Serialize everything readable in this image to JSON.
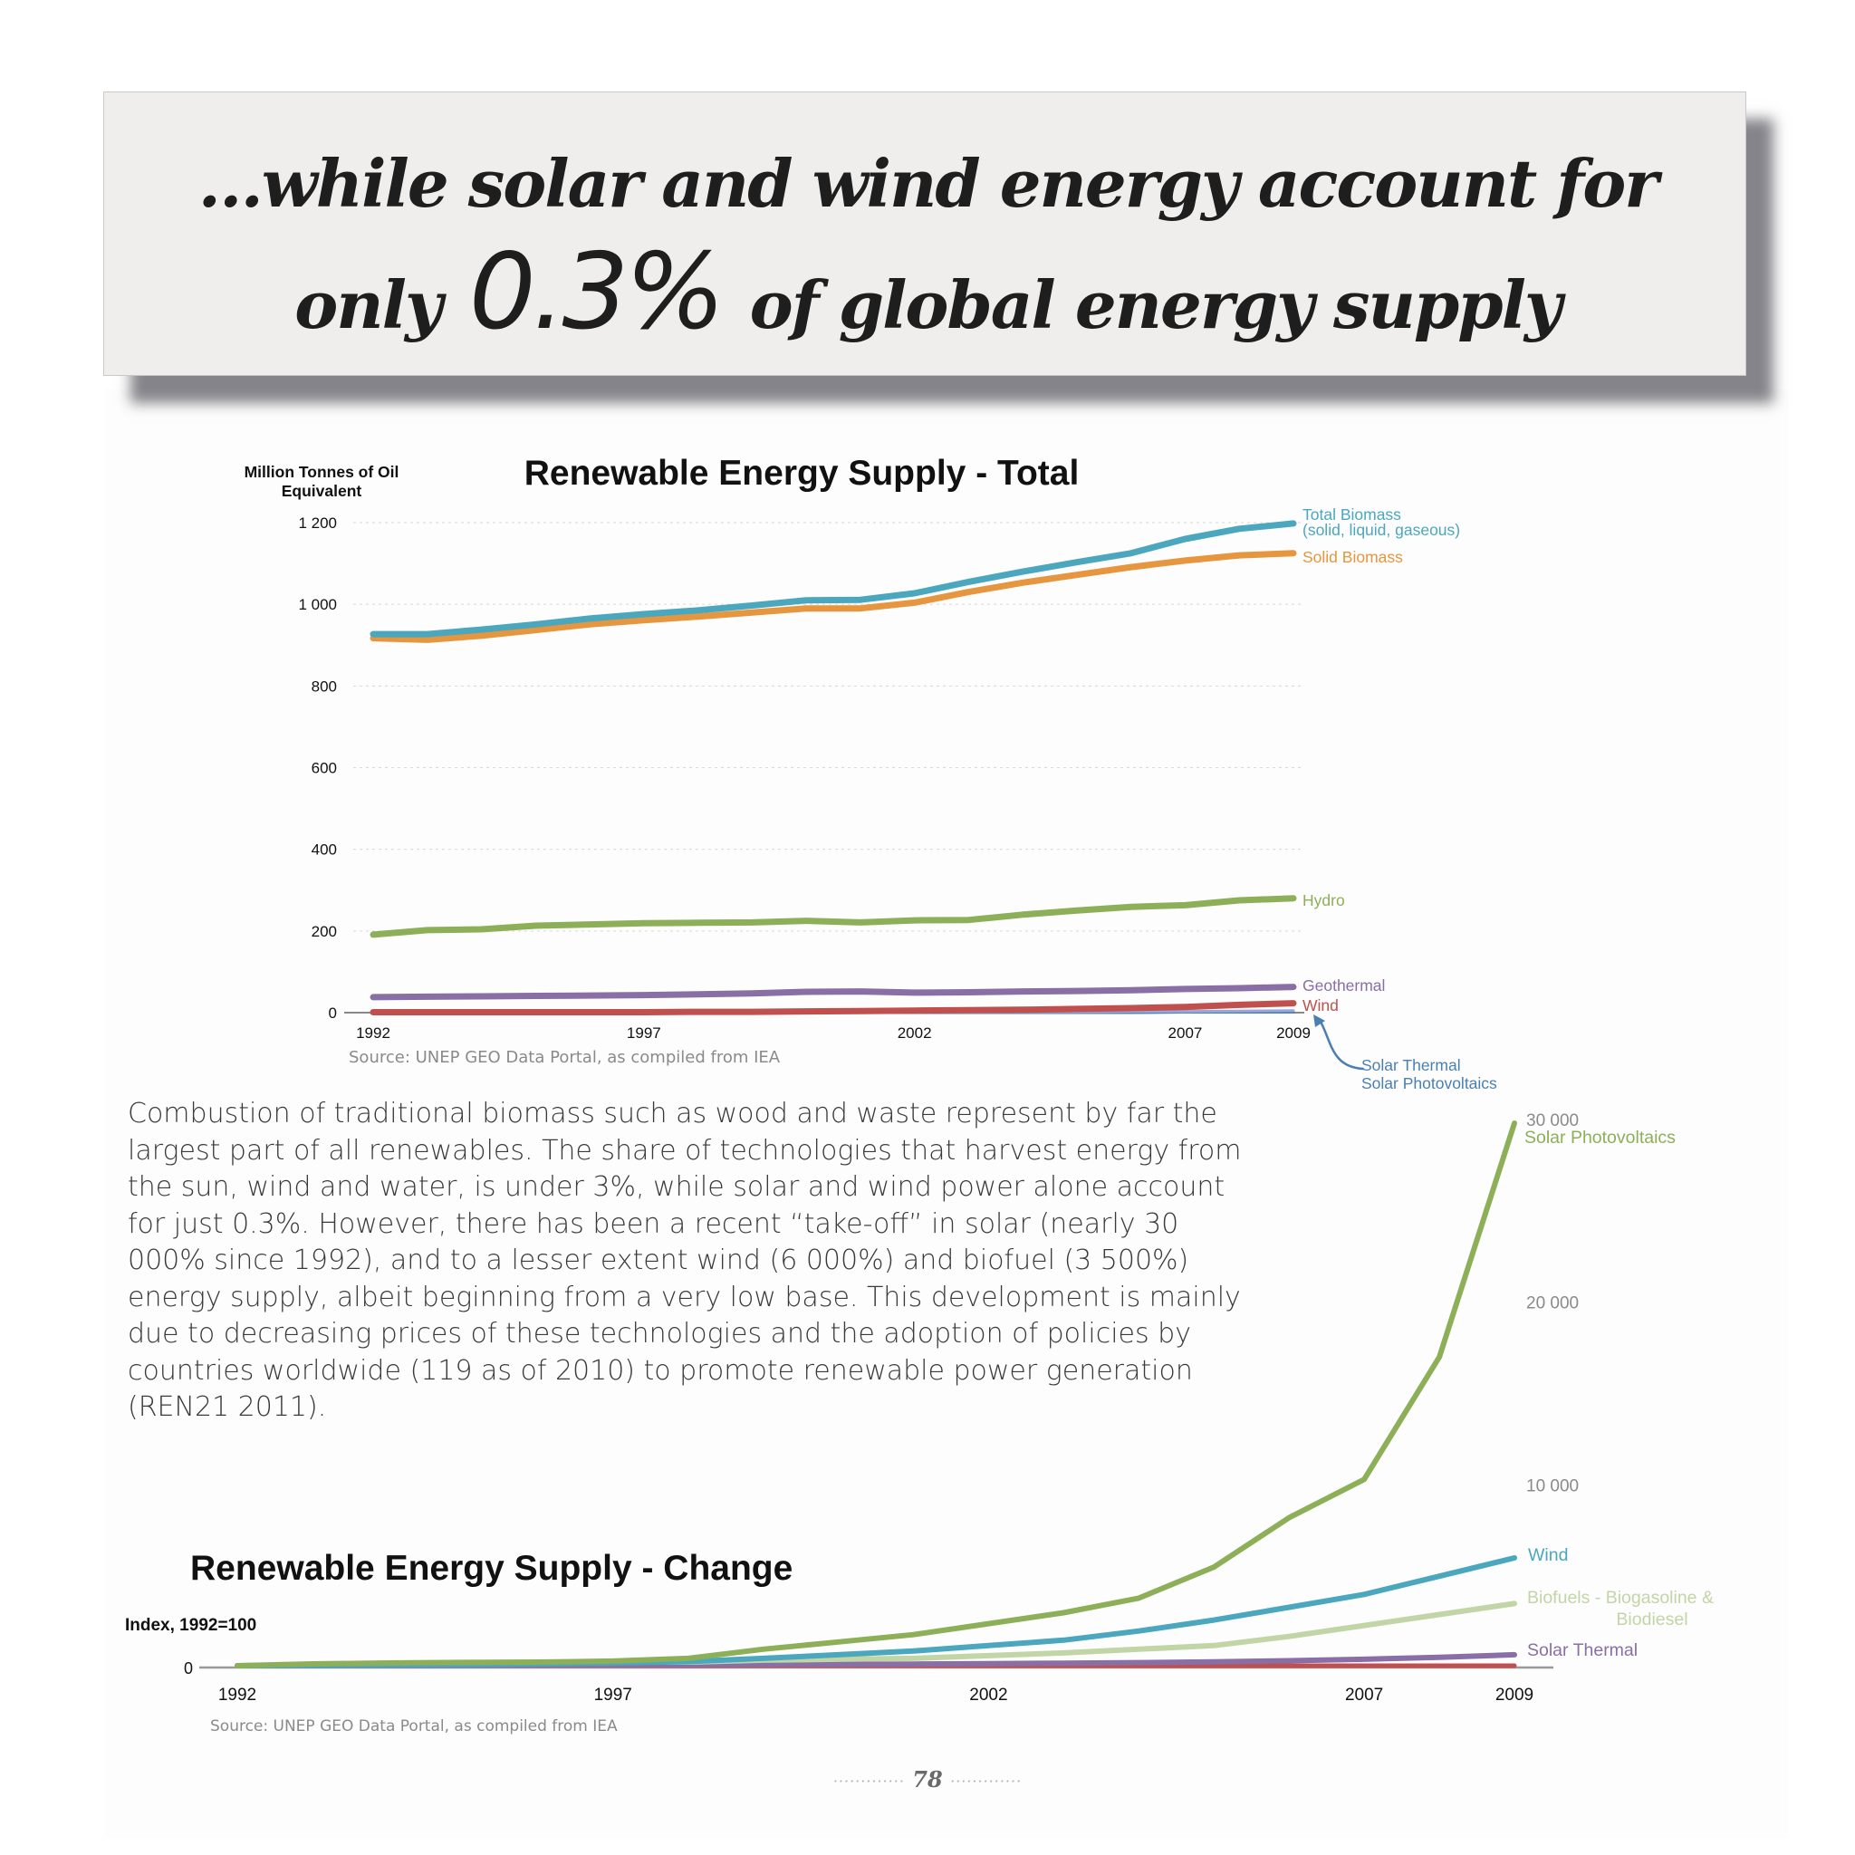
{
  "headline": {
    "line1": "…while solar and wind energy account for",
    "pre": "only",
    "percent": "0.3%",
    "post": "of global energy supply"
  },
  "body_text": "Combustion of traditional biomass such as wood and waste represent by far the largest part of all renewables. The share of technologies that harvest energy from the sun, wind and water, is under 3%, while solar and wind power alone account for just 0.3%. However, there has been a recent “take-off” in solar (nearly 30 000% since 1992), and to a lesser extent wind (6 000%) and biofuel (3 500%) energy supply, albeit beginning from a very low base. This development is mainly due to decreasing prices of these technologies and the adoption of policies by countries worldwide (119 as of 2010) to promote renewable power generation (REN21 2011).",
  "page_number": "78",
  "page_number_dots": "·············",
  "chart_data": [
    {
      "type": "line",
      "title": "Renewable Energy Supply - Total",
      "ylabel": "Million Tonnes of Oil Equivalent",
      "source": "Source: UNEP GEO Data Portal, as compiled from IEA",
      "x": [
        1992,
        1993,
        1994,
        1995,
        1996,
        1997,
        1998,
        1999,
        2000,
        2001,
        2002,
        2003,
        2004,
        2005,
        2006,
        2007,
        2008,
        2009
      ],
      "x_ticks": [
        1992,
        1997,
        2002,
        2007,
        2009
      ],
      "ylim": [
        0,
        1200
      ],
      "y_ticks": [
        0,
        200,
        400,
        600,
        800,
        1000,
        1200
      ],
      "y_tick_labels": [
        "0",
        "200",
        "400",
        "600",
        "800",
        "1 000",
        "1 200"
      ],
      "grid": true,
      "series": [
        {
          "name": "Total Biomass",
          "name_line2": "(solid, liquid, gaseous)",
          "color": "#4aa7bd",
          "values": [
            927,
            927,
            938,
            951,
            965,
            976,
            985,
            997,
            1010,
            1011,
            1027,
            1055,
            1080,
            1103,
            1125,
            1160,
            1185,
            1198
          ]
        },
        {
          "name": "Solid Biomass",
          "color": "#e5963e",
          "values": [
            917,
            913,
            923,
            937,
            951,
            961,
            970,
            980,
            990,
            990,
            1004,
            1030,
            1053,
            1072,
            1091,
            1107,
            1120,
            1125
          ]
        },
        {
          "name": "Hydro",
          "color": "#8daf58",
          "values": [
            191,
            202,
            204,
            213,
            216,
            219,
            220,
            221,
            225,
            221,
            226,
            227,
            240,
            250,
            259,
            263,
            275,
            280
          ]
        },
        {
          "name": "Geothermal",
          "color": "#8a6ea6",
          "values": [
            38,
            39,
            40,
            41,
            42,
            43,
            45,
            47,
            51,
            52,
            49,
            50,
            52,
            53,
            55,
            58,
            60,
            63
          ]
        },
        {
          "name": "Wind",
          "color": "#c0504d",
          "values": [
            1,
            1,
            1,
            1,
            1,
            1,
            2,
            2,
            3,
            4,
            5,
            6,
            7,
            9,
            11,
            14,
            19,
            23
          ]
        },
        {
          "name": "Solar Thermal",
          "color": "#4a7fb5",
          "values": [
            1,
            1,
            1,
            1,
            1,
            1,
            1,
            1,
            1,
            1,
            1,
            1,
            2,
            2,
            3,
            3,
            4,
            5
          ]
        },
        {
          "name": "Solar Photovoltaics",
          "color": "#4a7fb5",
          "values": [
            0,
            0,
            0,
            0,
            0,
            0,
            0,
            0,
            0,
            0,
            0,
            0,
            0,
            0,
            0,
            1,
            1,
            1
          ]
        }
      ]
    },
    {
      "type": "line",
      "title": "Renewable Energy Supply - Change",
      "ylabel": "Index, 1992=100",
      "source": "Source: UNEP GEO Data Portal, as compiled from IEA",
      "x": [
        1992,
        1993,
        1994,
        1995,
        1996,
        1997,
        1998,
        1999,
        2000,
        2001,
        2002,
        2003,
        2004,
        2005,
        2006,
        2007,
        2008,
        2009
      ],
      "x_ticks": [
        1992,
        1997,
        2002,
        2007,
        2009
      ],
      "ylim": [
        0,
        30000
      ],
      "y_ticks": [
        0,
        10000,
        20000,
        30000
      ],
      "y_tick_labels": [
        "0",
        "10 000",
        "20 000",
        "30 000"
      ],
      "grid": false,
      "series": [
        {
          "name": "Solar Photovoltaics",
          "color": "#8daf58",
          "values": [
            100,
            200,
            250,
            280,
            300,
            350,
            500,
            1000,
            1400,
            1800,
            2400,
            3000,
            3800,
            5500,
            8200,
            10300,
            17000,
            29800
          ]
        },
        {
          "name": "Wind",
          "color": "#4aa7bd",
          "values": [
            100,
            120,
            140,
            160,
            200,
            250,
            320,
            500,
            700,
            900,
            1200,
            1500,
            2000,
            2600,
            3300,
            4000,
            5000,
            6000
          ]
        },
        {
          "name": "Biofuels - Biogasoline &",
          "name_line2": "Biodiesel",
          "color": "#c2d5a6",
          "values": [
            100,
            150,
            200,
            200,
            250,
            300,
            300,
            400,
            450,
            500,
            650,
            800,
            1000,
            1200,
            1700,
            2300,
            2900,
            3500
          ]
        },
        {
          "name": "Solar Thermal",
          "color": "#8a6ea6",
          "values": [
            100,
            110,
            115,
            120,
            130,
            140,
            150,
            160,
            175,
            190,
            210,
            240,
            270,
            310,
            370,
            450,
            560,
            700
          ]
        },
        {
          "name": "",
          "color": "#c0504d",
          "values": [
            100,
            100,
            100,
            100,
            100,
            100,
            100,
            100,
            100,
            100,
            100,
            100,
            100,
            100,
            100,
            100,
            100,
            100
          ]
        }
      ]
    }
  ]
}
